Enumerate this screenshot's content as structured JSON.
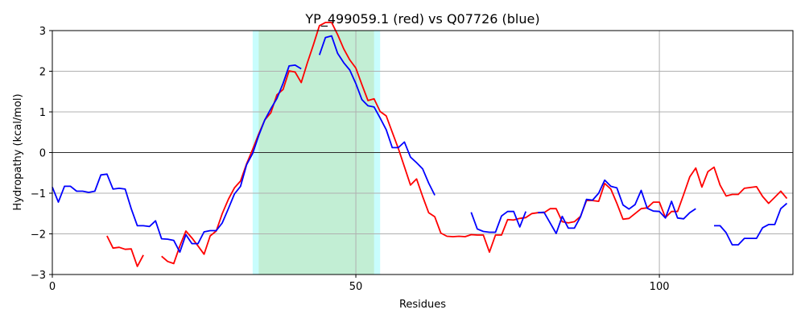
{
  "chart_data": {
    "type": "line",
    "title": "YP_499059.1 (red) vs Q07726 (blue)",
    "xlabel": "Residues",
    "ylabel": "Hydropathy (kcal/mol)",
    "xlim": [
      0,
      122
    ],
    "ylim": [
      -3,
      3
    ],
    "xticks": [
      0,
      50,
      100
    ],
    "yticks": [
      -3,
      -2,
      -1,
      0,
      1,
      2,
      3
    ],
    "grid": true,
    "zero_line": true,
    "regions": [
      {
        "x0": 33,
        "x1": 54,
        "color": "#c8fdfd"
      },
      {
        "x0": 34,
        "x1": 53,
        "color": "#c2eed4"
      }
    ],
    "series": [
      {
        "color": "#ff0000",
        "segments": [
          [
            [
              9,
              -2.05
            ],
            [
              10,
              -2.35
            ],
            [
              11,
              -2.33
            ],
            [
              12,
              -2.38
            ],
            [
              13,
              -2.37
            ],
            [
              14,
              -2.8
            ],
            [
              15,
              -2.52
            ]
          ],
          [
            [
              18,
              -2.55
            ],
            [
              19,
              -2.68
            ],
            [
              20,
              -2.73
            ],
            [
              21,
              -2.3
            ],
            [
              22,
              -1.93
            ],
            [
              23,
              -2.1
            ],
            [
              24,
              -2.3
            ],
            [
              25,
              -2.5
            ],
            [
              26,
              -2.05
            ],
            [
              27,
              -1.93
            ],
            [
              28,
              -1.5
            ],
            [
              29,
              -1.15
            ],
            [
              30,
              -0.87
            ],
            [
              31,
              -0.7
            ],
            [
              32,
              -0.28
            ],
            [
              33,
              0.08
            ],
            [
              34,
              0.46
            ],
            [
              35,
              0.8
            ],
            [
              36,
              0.98
            ],
            [
              37,
              1.42
            ],
            [
              38,
              1.55
            ],
            [
              39,
              2.01
            ],
            [
              40,
              1.98
            ],
            [
              41,
              1.72
            ],
            [
              42,
              2.2
            ],
            [
              43,
              2.65
            ],
            [
              44,
              3.12
            ],
            [
              45,
              3.2
            ],
            [
              46,
              3.2
            ],
            [
              47,
              2.9
            ],
            [
              48,
              2.55
            ],
            [
              49,
              2.28
            ],
            [
              50,
              2.08
            ],
            [
              51,
              1.67
            ],
            [
              52,
              1.28
            ],
            [
              53,
              1.32
            ],
            [
              54,
              1.01
            ],
            [
              55,
              0.9
            ],
            [
              56,
              0.5
            ],
            [
              57,
              0.1
            ],
            [
              58,
              -0.35
            ],
            [
              59,
              -0.8
            ],
            [
              60,
              -0.65
            ],
            [
              61,
              -1.08
            ],
            [
              62,
              -1.48
            ],
            [
              63,
              -1.58
            ],
            [
              64,
              -1.98
            ],
            [
              65,
              -2.06
            ],
            [
              66,
              -2.07
            ],
            [
              67,
              -2.06
            ],
            [
              68,
              -2.07
            ],
            [
              69,
              -2.02
            ],
            [
              70,
              -2.03
            ],
            [
              71,
              -2.03
            ],
            [
              72,
              -2.45
            ],
            [
              73,
              -2.03
            ],
            [
              74,
              -2.03
            ],
            [
              75,
              -1.65
            ],
            [
              76,
              -1.66
            ],
            [
              77,
              -1.62
            ],
            [
              78,
              -1.6
            ],
            [
              79,
              -1.5
            ],
            [
              80,
              -1.48
            ],
            [
              81,
              -1.48
            ],
            [
              82,
              -1.38
            ],
            [
              83,
              -1.38
            ],
            [
              84,
              -1.7
            ],
            [
              85,
              -1.73
            ],
            [
              86,
              -1.7
            ],
            [
              87,
              -1.57
            ],
            [
              88,
              -1.18
            ],
            [
              89,
              -1.18
            ],
            [
              90,
              -1.2
            ],
            [
              91,
              -0.76
            ],
            [
              92,
              -0.9
            ],
            [
              93,
              -1.25
            ],
            [
              94,
              -1.64
            ],
            [
              95,
              -1.62
            ],
            [
              96,
              -1.5
            ],
            [
              97,
              -1.38
            ],
            [
              98,
              -1.36
            ],
            [
              99,
              -1.22
            ],
            [
              100,
              -1.22
            ],
            [
              101,
              -1.6
            ],
            [
              102,
              -1.45
            ],
            [
              103,
              -1.45
            ],
            [
              104,
              -1.03
            ],
            [
              105,
              -0.6
            ],
            [
              106,
              -0.38
            ],
            [
              107,
              -0.85
            ],
            [
              108,
              -0.47
            ],
            [
              109,
              -0.36
            ],
            [
              110,
              -0.8
            ],
            [
              111,
              -1.07
            ],
            [
              112,
              -1.03
            ],
            [
              113,
              -1.03
            ],
            [
              114,
              -0.88
            ],
            [
              115,
              -0.86
            ],
            [
              116,
              -0.84
            ],
            [
              117,
              -1.08
            ],
            [
              118,
              -1.25
            ],
            [
              119,
              -1.1
            ],
            [
              120,
              -0.95
            ],
            [
              121,
              -1.13
            ]
          ]
        ]
      },
      {
        "color": "#0000ff",
        "segments": [
          [
            [
              0,
              -0.85
            ],
            [
              1,
              -1.22
            ],
            [
              2,
              -0.83
            ],
            [
              3,
              -0.83
            ],
            [
              4,
              -0.95
            ],
            [
              5,
              -0.95
            ],
            [
              6,
              -0.98
            ],
            [
              7,
              -0.95
            ],
            [
              8,
              -0.55
            ],
            [
              9,
              -0.53
            ],
            [
              10,
              -0.9
            ],
            [
              11,
              -0.88
            ],
            [
              12,
              -0.9
            ],
            [
              13,
              -1.38
            ],
            [
              14,
              -1.8
            ],
            [
              15,
              -1.8
            ],
            [
              16,
              -1.82
            ],
            [
              17,
              -1.68
            ],
            [
              18,
              -2.12
            ],
            [
              19,
              -2.13
            ],
            [
              20,
              -2.16
            ],
            [
              21,
              -2.45
            ],
            [
              22,
              -2.02
            ],
            [
              23,
              -2.24
            ],
            [
              24,
              -2.24
            ],
            [
              25,
              -1.95
            ],
            [
              26,
              -1.92
            ],
            [
              27,
              -1.92
            ],
            [
              28,
              -1.73
            ],
            [
              29,
              -1.38
            ],
            [
              30,
              -1.02
            ],
            [
              31,
              -0.83
            ],
            [
              32,
              -0.3
            ],
            [
              33,
              -0.02
            ],
            [
              34,
              0.42
            ],
            [
              35,
              0.8
            ],
            [
              36,
              1.08
            ],
            [
              37,
              1.33
            ],
            [
              38,
              1.7
            ],
            [
              39,
              2.13
            ],
            [
              40,
              2.15
            ],
            [
              41,
              2.06
            ]
          ],
          [
            [
              44,
              2.4
            ],
            [
              45,
              2.83
            ],
            [
              46,
              2.87
            ],
            [
              47,
              2.44
            ],
            [
              48,
              2.21
            ],
            [
              49,
              2.03
            ],
            [
              50,
              1.7
            ],
            [
              51,
              1.3
            ],
            [
              52,
              1.15
            ],
            [
              53,
              1.12
            ],
            [
              54,
              0.85
            ],
            [
              55,
              0.56
            ],
            [
              56,
              0.12
            ],
            [
              57,
              0.12
            ],
            [
              58,
              0.26
            ],
            [
              59,
              -0.11
            ],
            [
              60,
              -0.25
            ],
            [
              61,
              -0.4
            ],
            [
              62,
              -0.75
            ],
            [
              63,
              -1.05
            ]
          ],
          [
            [
              69,
              -1.47
            ],
            [
              70,
              -1.88
            ],
            [
              71,
              -1.94
            ],
            [
              72,
              -1.96
            ],
            [
              73,
              -1.96
            ],
            [
              74,
              -1.56
            ],
            [
              75,
              -1.45
            ],
            [
              76,
              -1.45
            ],
            [
              77,
              -1.83
            ],
            [
              78,
              -1.45
            ]
          ],
          [
            [
              80,
              -1.48
            ],
            [
              81,
              -1.47
            ],
            [
              82,
              -1.73
            ],
            [
              83,
              -1.99
            ],
            [
              84,
              -1.57
            ],
            [
              85,
              -1.86
            ],
            [
              86,
              -1.86
            ],
            [
              87,
              -1.58
            ],
            [
              88,
              -1.15
            ],
            [
              89,
              -1.17
            ],
            [
              90,
              -1.0
            ],
            [
              91,
              -0.68
            ],
            [
              92,
              -0.83
            ],
            [
              93,
              -0.87
            ],
            [
              94,
              -1.29
            ],
            [
              95,
              -1.39
            ],
            [
              96,
              -1.28
            ],
            [
              97,
              -0.93
            ],
            [
              98,
              -1.37
            ],
            [
              99,
              -1.44
            ],
            [
              100,
              -1.45
            ],
            [
              101,
              -1.61
            ],
            [
              102,
              -1.2
            ],
            [
              103,
              -1.61
            ],
            [
              104,
              -1.63
            ],
            [
              105,
              -1.48
            ],
            [
              106,
              -1.38
            ]
          ],
          [
            [
              109,
              -1.8
            ],
            [
              110,
              -1.8
            ],
            [
              111,
              -1.97
            ],
            [
              112,
              -2.27
            ],
            [
              113,
              -2.27
            ],
            [
              114,
              -2.11
            ],
            [
              115,
              -2.11
            ],
            [
              116,
              -2.11
            ],
            [
              117,
              -1.85
            ],
            [
              118,
              -1.77
            ],
            [
              119,
              -1.77
            ],
            [
              120,
              -1.38
            ],
            [
              121,
              -1.25
            ]
          ]
        ]
      }
    ]
  }
}
